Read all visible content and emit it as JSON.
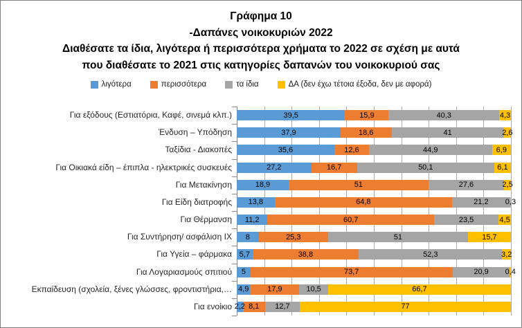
{
  "title": {
    "lines": [
      "Γράφημα 10",
      "-Δαπάνες νοικοκυριών 2022",
      "Διαθέσατε τα ίδια, λιγότερα ή περισσότερα χρήματα το 2022 σε σχέση με αυτά",
      "που διαθέσατε το 2021 στις κατηγορίες δαπανών του νοικοκυριού σας"
    ]
  },
  "colors": {
    "less": "#5B9BD5",
    "more": "#ED7D31",
    "same": "#A5A5A5",
    "na": "#FFC000",
    "gridline": "#ABABAB",
    "border": "#808080"
  },
  "chart_data": {
    "type": "bar",
    "orientation": "horizontal-stacked",
    "unit": "percent",
    "xlim": [
      0,
      100
    ],
    "gridline_step": 10,
    "grid": true,
    "legend_position": "top",
    "categories": [
      "Για εξόδους (Εστιατόρια, Καφέ, σινεμά κλπ.)",
      "Ένδυση – Υπόδηση",
      "Ταξίδια - Διακοπές",
      "Για Οικιακά είδη – έπιπλα - ηλεκτρικές συσκευές",
      "Για Μετακίνηση",
      "Για Είδη διατροφής",
      "Για Θέρμανση",
      "Για Συντήρηση/ ασφάλιση ΙΧ",
      "Για Υγεία – φάρμακα",
      "Για Λογαριασμούς σπιτιού",
      "Εκπαίδευση (σχολεία, ξένες γλώσσες, φροντιστήρια,…",
      "Για ενοίκιο"
    ],
    "series": [
      {
        "key": "less",
        "name": "λιγότερα",
        "color": "#5B9BD5",
        "values": [
          39.5,
          37.9,
          35.6,
          27.2,
          18.9,
          13.8,
          11.2,
          8,
          5.7,
          5,
          4.9,
          2.2
        ]
      },
      {
        "key": "more",
        "name": "περισσότερα",
        "color": "#ED7D31",
        "values": [
          15.9,
          18.6,
          12.6,
          16.7,
          51,
          64.8,
          60.7,
          25.3,
          38.8,
          73.7,
          17.9,
          8.1
        ]
      },
      {
        "key": "same",
        "name": "τα ίδια",
        "color": "#A5A5A5",
        "values": [
          40.3,
          41,
          44.9,
          50.1,
          27.6,
          21.2,
          23.5,
          51,
          52.3,
          20.9,
          10.5,
          12.7
        ]
      },
      {
        "key": "na",
        "name": "ΔΑ (δεν έχω τέτοια έξοδα, δεν με αφορά)",
        "color": "#FFC000",
        "values": [
          4.3,
          2.6,
          6.9,
          6.1,
          2.5,
          0.3,
          4.5,
          15.7,
          3.2,
          0.4,
          66.7,
          77
        ]
      }
    ],
    "labels": [
      [
        "39,5",
        "15,9",
        "40,3",
        "4,3"
      ],
      [
        "37,9",
        "18,6",
        "41",
        "2,6"
      ],
      [
        "35,6",
        "12,6",
        "44,9",
        "6,9"
      ],
      [
        "27,2",
        "16,7",
        "50,1",
        "6,1"
      ],
      [
        "18,9",
        "51",
        "27,6",
        "2,5"
      ],
      [
        "13,8",
        "64,8",
        "21,2",
        "0,3"
      ],
      [
        "11,2",
        "60,7",
        "23,5",
        "4,5"
      ],
      [
        "8",
        "25,3",
        "51",
        "15,7"
      ],
      [
        "5,7",
        "38,8",
        "52,3",
        "3,2"
      ],
      [
        "5",
        "73,7",
        "20,9",
        "0,4"
      ],
      [
        "4,9",
        "17,9",
        "10,5",
        "66,7"
      ],
      [
        "2,2",
        "8,1",
        "12,7",
        "77"
      ]
    ]
  }
}
